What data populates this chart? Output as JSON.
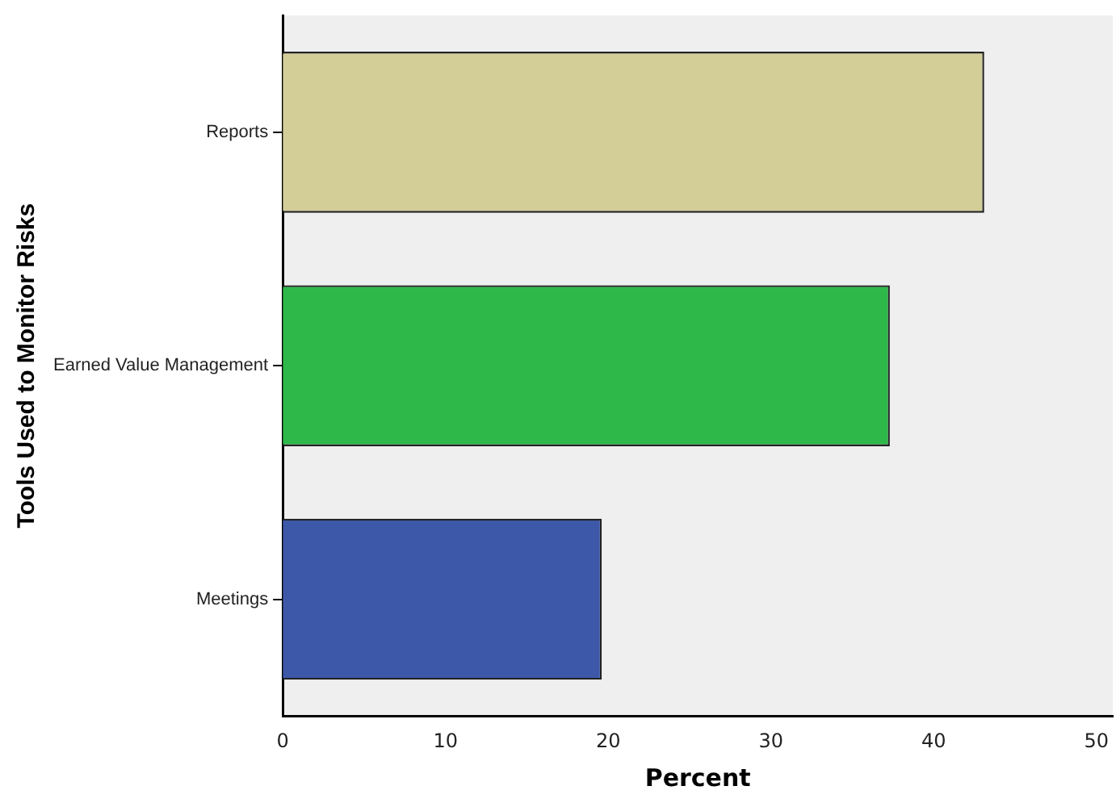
{
  "chart_data": {
    "type": "bar",
    "orientation": "horizontal",
    "xlabel": "Percent",
    "ylabel": "Tools Used to Monitor Risks",
    "categories": [
      "Reports",
      "Earned Value Management",
      "Meetings"
    ],
    "values": [
      43.1,
      37.3,
      19.6
    ],
    "colors": [
      "#d3ce98",
      "#2eb84a",
      "#3d58a8"
    ],
    "xlim": [
      0,
      51
    ],
    "xticks": [
      0,
      10,
      20,
      30,
      40,
      50
    ],
    "grid": false,
    "legend": false
  }
}
